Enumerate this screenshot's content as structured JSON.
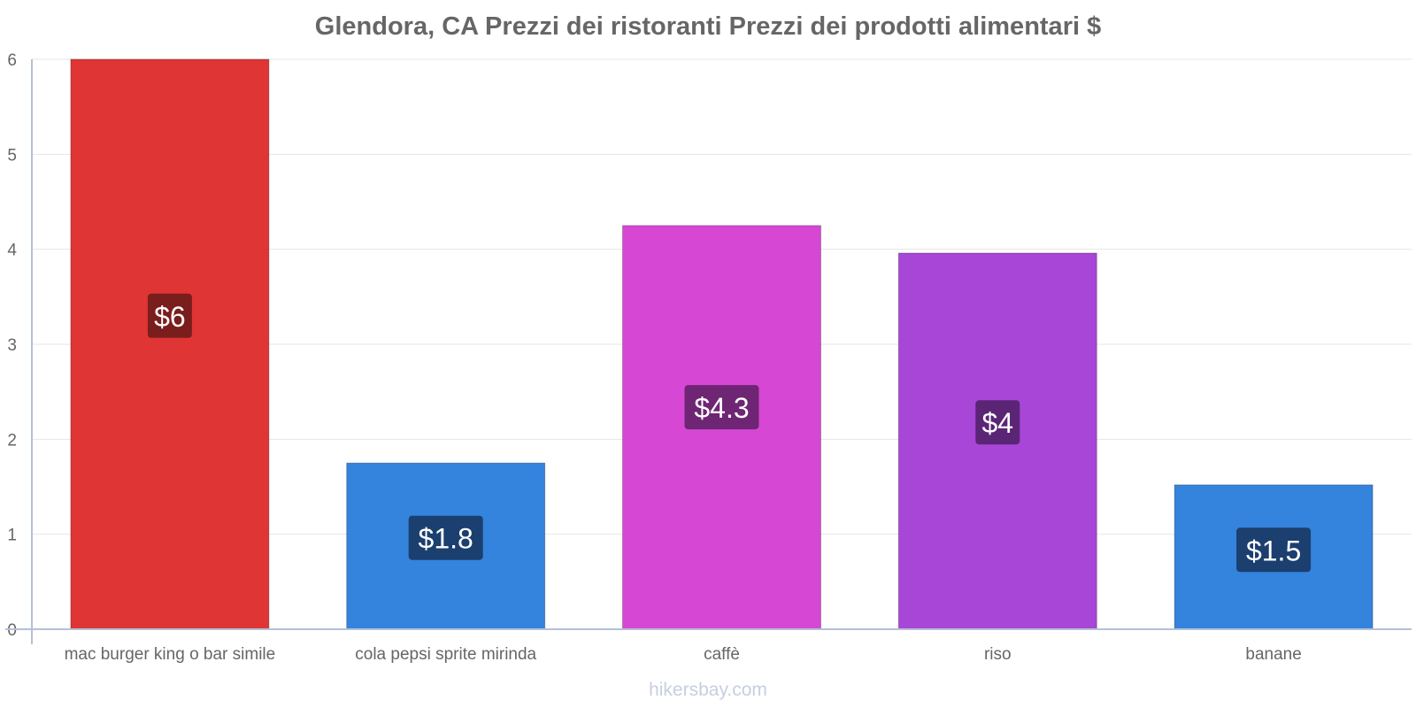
{
  "chart_data": {
    "type": "bar",
    "title": "Glendora, CA Prezzi dei ristoranti Prezzi dei prodotti alimentari $",
    "categories": [
      "mac burger king o bar simile",
      "cola pepsi sprite mirinda",
      "caffè",
      "riso",
      "banane"
    ],
    "values": [
      6,
      1.75,
      4.25,
      3.96,
      1.52
    ],
    "data_labels": [
      "$6",
      "$1.8",
      "$4.3",
      "$4",
      "$1.5"
    ],
    "colors": [
      "#e03535",
      "#3483dd",
      "#d647d4",
      "#a846d8",
      "#3483dd"
    ],
    "label_bg_colors": [
      "#7a1d1d",
      "#1b3f6e",
      "#6e2573",
      "#5a2575",
      "#1b3f6e"
    ],
    "y_ticks": [
      "0",
      "1",
      "2",
      "3",
      "4",
      "5",
      "6"
    ],
    "ylim": [
      0,
      6
    ],
    "grid": true,
    "xlabel": "",
    "ylabel": ""
  },
  "watermark": "hikersbay.com"
}
